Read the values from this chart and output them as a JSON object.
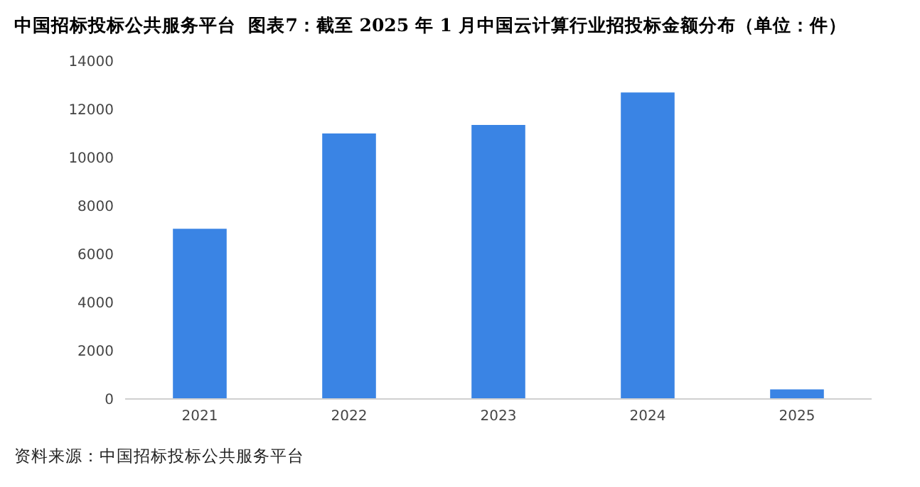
{
  "chart_data": {
    "type": "bar",
    "title": "中国招标投标公共服务平台  图表7：截至 2025 年 1 月中国云计算行业招投标金额分布（单位：件）",
    "categories": [
      "2021",
      "2022",
      "2023",
      "2024",
      "2025"
    ],
    "values": [
      7050,
      11000,
      11350,
      12700,
      400
    ],
    "color": "#3a84e4",
    "ylim": [
      0,
      14000
    ],
    "yticks": [
      0,
      2000,
      4000,
      6000,
      8000,
      10000,
      12000,
      14000
    ],
    "grid": false,
    "annotations": [
      "资料来源：中国招标投标公共服务平台"
    ]
  }
}
